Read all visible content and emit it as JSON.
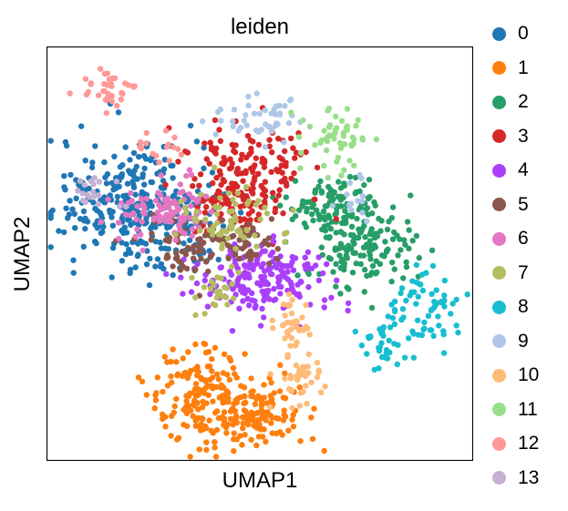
{
  "chart_data": {
    "type": "scatter",
    "title": "leiden",
    "xlabel": "UMAP1",
    "ylabel": "UMAP2",
    "xlim": [
      0,
      100
    ],
    "ylim": [
      0,
      100
    ],
    "axis_ticks": false,
    "grid": false,
    "legend_position": "right-outside",
    "series": [
      {
        "name": "0",
        "color": "#1f77b4",
        "count": 330
      },
      {
        "name": "1",
        "color": "#ff7f0e",
        "count": 290
      },
      {
        "name": "2",
        "color": "#279e68",
        "count": 240
      },
      {
        "name": "3",
        "color": "#d62728",
        "count": 210
      },
      {
        "name": "4",
        "color": "#aa40fc",
        "count": 190
      },
      {
        "name": "5",
        "color": "#8c564b",
        "count": 110
      },
      {
        "name": "6",
        "color": "#e377c2",
        "count": 100
      },
      {
        "name": "7",
        "color": "#b5bd61",
        "count": 90
      },
      {
        "name": "8",
        "color": "#17becf",
        "count": 100
      },
      {
        "name": "9",
        "color": "#aec7e8",
        "count": 60
      },
      {
        "name": "10",
        "color": "#ffbb78",
        "count": 80
      },
      {
        "name": "11",
        "color": "#98df8a",
        "count": 55
      },
      {
        "name": "12",
        "color": "#ff9896",
        "count": 55
      },
      {
        "name": "13",
        "color": "#c5b0d5",
        "count": 20
      }
    ]
  }
}
